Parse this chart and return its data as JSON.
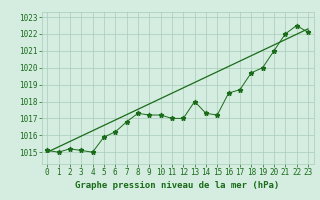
{
  "x": [
    0,
    1,
    2,
    3,
    4,
    5,
    6,
    7,
    8,
    9,
    10,
    11,
    12,
    13,
    14,
    15,
    16,
    17,
    18,
    19,
    20,
    21,
    22,
    23
  ],
  "y": [
    1015.1,
    1015.0,
    1015.2,
    1015.1,
    1015.0,
    1015.9,
    1016.2,
    1016.8,
    1017.3,
    1017.2,
    1017.2,
    1017.0,
    1017.0,
    1018.0,
    1017.3,
    1017.2,
    1018.5,
    1018.7,
    1019.7,
    1020.0,
    1021.0,
    1022.0,
    1022.5,
    1022.1
  ],
  "trend_x": [
    0,
    23
  ],
  "trend_y": [
    1015.0,
    1022.3
  ],
  "title": "Graphe pression niveau de la mer (hPa)",
  "xlabel": "Graphe pression niveau de la mer (hPa)",
  "ylim": [
    1014.3,
    1023.3
  ],
  "xlim": [
    -0.5,
    23.5
  ],
  "yticks": [
    1015,
    1016,
    1017,
    1018,
    1019,
    1020,
    1021,
    1022,
    1023
  ],
  "xticks": [
    0,
    1,
    2,
    3,
    4,
    5,
    6,
    7,
    8,
    9,
    10,
    11,
    12,
    13,
    14,
    15,
    16,
    17,
    18,
    19,
    20,
    21,
    22,
    23
  ],
  "line_color": "#1a6b1a",
  "trend_color": "#1a6b1a",
  "bg_color": "#d4ede0",
  "grid_color": "#a8cdb8",
  "text_color": "#1a6b1a",
  "marker": "*",
  "marker_size": 3.5,
  "line_width": 0.7,
  "tick_font_size": 5.5,
  "label_font_size": 6.5
}
